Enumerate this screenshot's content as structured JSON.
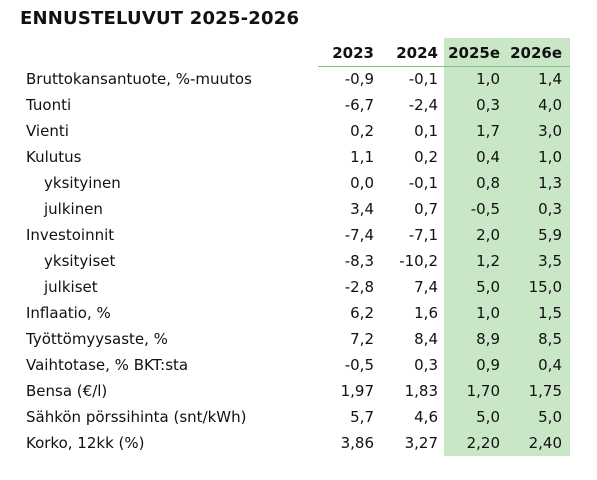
{
  "title": "ENNUSTELUVUT 2025-2026",
  "colors": {
    "forecast_highlight": "#c9e6c7",
    "header_rule": "#7fbf86",
    "text": "#111111"
  },
  "columns": [
    "2023",
    "2024",
    "2025e",
    "2026e"
  ],
  "rows": [
    {
      "label": "Bruttokansantuote, %-muutos",
      "sub": false,
      "values": [
        "-0,9",
        "-0,1",
        "1,0",
        "1,4"
      ]
    },
    {
      "label": "Tuonti",
      "sub": false,
      "values": [
        "-6,7",
        "-2,4",
        "0,3",
        "4,0"
      ]
    },
    {
      "label": "Vienti",
      "sub": false,
      "values": [
        "0,2",
        "0,1",
        "1,7",
        "3,0"
      ]
    },
    {
      "label": "Kulutus",
      "sub": false,
      "values": [
        "1,1",
        "0,2",
        "0,4",
        "1,0"
      ]
    },
    {
      "label": "yksityinen",
      "sub": true,
      "values": [
        "0,0",
        "-0,1",
        "0,8",
        "1,3"
      ]
    },
    {
      "label": "julkinen",
      "sub": true,
      "values": [
        "3,4",
        "0,7",
        "-0,5",
        "0,3"
      ]
    },
    {
      "label": "Investoinnit",
      "sub": false,
      "values": [
        "-7,4",
        "-7,1",
        "2,0",
        "5,9"
      ]
    },
    {
      "label": "yksityiset",
      "sub": true,
      "values": [
        "-8,3",
        "-10,2",
        "1,2",
        "3,5"
      ]
    },
    {
      "label": "julkiset",
      "sub": true,
      "values": [
        "-2,8",
        "7,4",
        "5,0",
        "15,0"
      ]
    },
    {
      "label": "Inflaatio, %",
      "sub": false,
      "values": [
        "6,2",
        "1,6",
        "1,0",
        "1,5"
      ]
    },
    {
      "label": "Työttömyysaste, %",
      "sub": false,
      "values": [
        "7,2",
        "8,4",
        "8,9",
        "8,5"
      ]
    },
    {
      "label": "Vaihtotase, % BKT:sta",
      "sub": false,
      "values": [
        "-0,5",
        "0,3",
        "0,9",
        "0,4"
      ]
    },
    {
      "label": "Bensa (€/l)",
      "sub": false,
      "values": [
        "1,97",
        "1,83",
        "1,70",
        "1,75"
      ]
    },
    {
      "label": "Sähkön pörssihinta (snt/kWh)",
      "sub": false,
      "values": [
        "5,7",
        "4,6",
        "5,0",
        "5,0"
      ]
    },
    {
      "label": "Korko, 12kk (%)",
      "sub": false,
      "values": [
        "3,86",
        "3,27",
        "2,20",
        "2,40"
      ]
    }
  ]
}
